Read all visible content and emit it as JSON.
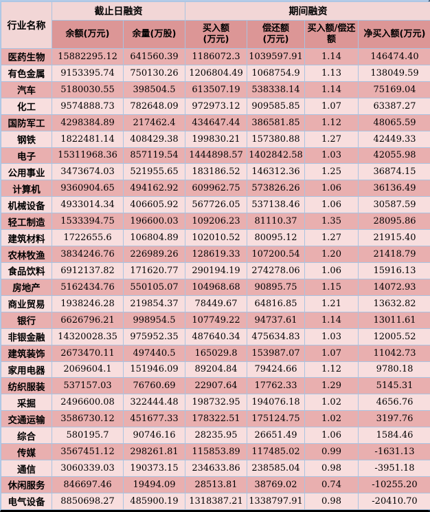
{
  "colors": {
    "header_top_bg": "#f2d6d6",
    "header_sub_bg": "#dc9696",
    "row_odd_bg": "#e9afaf",
    "row_even_bg": "#f8dede",
    "grid": "#a9c3e1",
    "text": "#000000",
    "border_right": "#1e2f44",
    "border_bottom": "#000000",
    "border_outer": "#b3cbe8"
  },
  "chart_data": {
    "type": "table",
    "corner": "行业名称",
    "groups": [
      {
        "label": "截止日融资",
        "span": 2
      },
      {
        "label": "期间融资",
        "span": 4
      }
    ],
    "columns": [
      "余额(万元)",
      "余量(万股)",
      "买入额\n(万元)",
      "偿还额\n(万元)",
      "买入额/偿还额",
      "净买入额(万元)"
    ],
    "rows": [
      {
        "name": "医药生物",
        "values": [
          "15882295.12",
          "641560.39",
          "1186072.3",
          "1039597.91",
          "1.14",
          "146474.40"
        ]
      },
      {
        "name": "有色金属",
        "values": [
          "9153395.74",
          "750130.26",
          "1206804.49",
          "1068754.9",
          "1.13",
          "138049.59"
        ]
      },
      {
        "name": "汽车",
        "values": [
          "5180030.55",
          "398504.5",
          "613507.19",
          "538338.14",
          "1.14",
          "75169.04"
        ]
      },
      {
        "name": "化工",
        "values": [
          "9574888.73",
          "782648.09",
          "972973.12",
          "909585.85",
          "1.07",
          "63387.27"
        ]
      },
      {
        "name": "国防军工",
        "values": [
          "4298384.89",
          "217462.4",
          "434647.44",
          "386581.85",
          "1.12",
          "48065.59"
        ]
      },
      {
        "name": "钢铁",
        "values": [
          "1822481.14",
          "408429.38",
          "199830.21",
          "157380.88",
          "1.27",
          "42449.33"
        ]
      },
      {
        "name": "电子",
        "values": [
          "15311968.36",
          "857119.54",
          "1444898.57",
          "1402842.58",
          "1.03",
          "42055.98"
        ]
      },
      {
        "name": "公用事业",
        "values": [
          "3473674.03",
          "521955.65",
          "183186.52",
          "146312.36",
          "1.25",
          "36874.15"
        ]
      },
      {
        "name": "计算机",
        "values": [
          "9360904.65",
          "494162.92",
          "609962.75",
          "573826.26",
          "1.06",
          "36136.49"
        ]
      },
      {
        "name": "机械设备",
        "values": [
          "4933014.34",
          "406605.92",
          "567726.05",
          "537138.46",
          "1.06",
          "30587.59"
        ]
      },
      {
        "name": "轻工制造",
        "values": [
          "1533394.75",
          "196600.03",
          "109206.23",
          "81110.37",
          "1.35",
          "28095.86"
        ]
      },
      {
        "name": "建筑材料",
        "values": [
          "1722655.6",
          "106804.89",
          "102010.52",
          "80095.12",
          "1.27",
          "21915.40"
        ]
      },
      {
        "name": "农林牧渔",
        "values": [
          "3834246.76",
          "226989.26",
          "128619.33",
          "107200.54",
          "1.20",
          "21418.79"
        ]
      },
      {
        "name": "食品饮料",
        "values": [
          "6912137.82",
          "171620.77",
          "290194.19",
          "274278.06",
          "1.06",
          "15916.13"
        ]
      },
      {
        "name": "房地产",
        "values": [
          "5162434.76",
          "550105.07",
          "104968.68",
          "90895.75",
          "1.15",
          "14072.93"
        ]
      },
      {
        "name": "商业贸易",
        "values": [
          "1938246.28",
          "219854.37",
          "78449.67",
          "64816.85",
          "1.21",
          "13632.82"
        ]
      },
      {
        "name": "银行",
        "values": [
          "6626796.21",
          "998954.5",
          "107749.22",
          "94737.61",
          "1.14",
          "13011.61"
        ]
      },
      {
        "name": "非银金融",
        "values": [
          "14320028.35",
          "975952.35",
          "487640.34",
          "475634.83",
          "1.03",
          "12005.52"
        ]
      },
      {
        "name": "建筑装饰",
        "values": [
          "2673470.11",
          "497440.5",
          "165029.8",
          "153987.07",
          "1.07",
          "11042.73"
        ]
      },
      {
        "name": "家用电器",
        "values": [
          "2069604.1",
          "151946.09",
          "89204.84",
          "79424.66",
          "1.12",
          "9780.18"
        ]
      },
      {
        "name": "纺织服装",
        "values": [
          "537157.03",
          "76760.69",
          "22907.64",
          "17762.33",
          "1.29",
          "5145.31"
        ]
      },
      {
        "name": "采掘",
        "values": [
          "2496600.08",
          "322444.48",
          "198732.95",
          "194076.18",
          "1.02",
          "4656.76"
        ]
      },
      {
        "name": "交通运输",
        "values": [
          "3586730.12",
          "451677.33",
          "178322.51",
          "175124.75",
          "1.02",
          "3197.76"
        ]
      },
      {
        "name": "综合",
        "values": [
          "580195.7",
          "90746.16",
          "28235.95",
          "26651.49",
          "1.06",
          "1584.46"
        ]
      },
      {
        "name": "传媒",
        "values": [
          "3567451.12",
          "298261.81",
          "115853.89",
          "117485.02",
          "0.99",
          "-1631.13"
        ]
      },
      {
        "name": "通信",
        "values": [
          "3060339.03",
          "190373.15",
          "234633.86",
          "238585.04",
          "0.98",
          "-3951.18"
        ]
      },
      {
        "name": "休闲服务",
        "values": [
          "846697.46",
          "19494.09",
          "28513.81",
          "38769.02",
          "0.74",
          "-10255.20"
        ]
      },
      {
        "name": "电气设备",
        "values": [
          "8850698.27",
          "485900.19",
          "1318387.21",
          "1338797.91",
          "0.98",
          "-20410.70"
        ]
      }
    ]
  }
}
